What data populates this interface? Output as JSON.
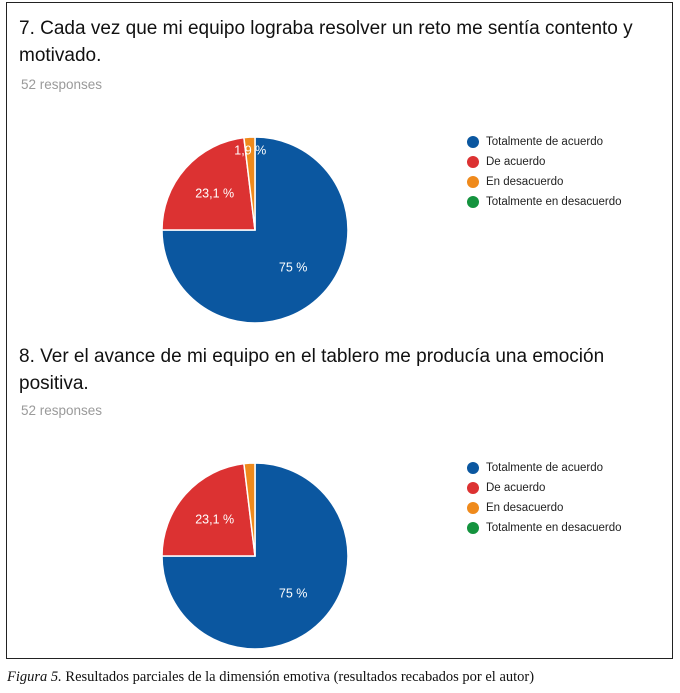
{
  "colors": {
    "blue": "#0b57a0",
    "red": "#dc3232",
    "orange": "#ef8a1c",
    "green": "#14933e"
  },
  "legend_items": [
    {
      "label": "Totalmente de acuerdo",
      "color": "#0b57a0"
    },
    {
      "label": "De acuerdo",
      "color": "#dc3232"
    },
    {
      "label": "En desacuerdo",
      "color": "#ef8a1c"
    },
    {
      "label": "Totalmente en desacuerdo",
      "color": "#14933e"
    }
  ],
  "panels": [
    {
      "title": "7. Cada vez que mi equipo lograba resolver un reto me sentía contento y motivado.",
      "responses": "52 responses"
    },
    {
      "title": "8. Ver el avance de mi equipo en el tablero me producía una emoción positiva.",
      "responses": "52 responses"
    }
  ],
  "chart_data": [
    {
      "type": "pie",
      "title": "7. Cada vez que mi equipo lograba resolver un reto me sentía contento y motivado.",
      "categories": [
        "Totalmente de acuerdo",
        "De acuerdo",
        "En desacuerdo",
        "Totalmente en desacuerdo"
      ],
      "values": [
        75,
        23.1,
        1.9,
        0
      ],
      "labels": [
        "75 %",
        "23,1 %",
        "1,9 %",
        ""
      ],
      "colors": [
        "#0b57a0",
        "#dc3232",
        "#ef8a1c",
        "#14933e"
      ],
      "legend": "right"
    },
    {
      "type": "pie",
      "title": "8. Ver el avance de mi equipo en el tablero me producía una emoción positiva.",
      "categories": [
        "Totalmente de acuerdo",
        "De acuerdo",
        "En desacuerdo",
        "Totalmente en desacuerdo"
      ],
      "values": [
        75,
        23.1,
        1.9,
        0
      ],
      "labels": [
        "75 %",
        "23,1 %",
        "",
        ""
      ],
      "colors": [
        "#0b57a0",
        "#dc3232",
        "#ef8a1c",
        "#14933e"
      ],
      "legend": "right"
    }
  ],
  "caption": {
    "label": "Figura 5.",
    "text": " Resultados parciales de la dimensión emotiva (resultados recabados por el autor)"
  }
}
